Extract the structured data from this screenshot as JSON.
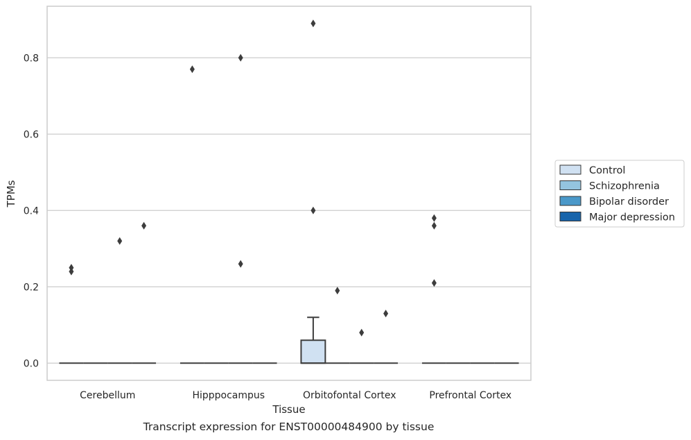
{
  "caption": "Transcript expression for ENST00000484900 by tissue",
  "chart_data": {
    "type": "box",
    "xlabel": "Tissue",
    "ylabel": "TPMs",
    "categories": [
      "Cerebellum",
      "Hipppocampus",
      "Orbitofontal Cortex",
      "Prefrontal Cortex"
    ],
    "ylim": [
      -0.045,
      0.935
    ],
    "yticks": [
      0.0,
      0.2,
      0.4,
      0.6,
      0.8
    ],
    "ytick_labels": [
      "0.0",
      "0.2",
      "0.4",
      "0.6",
      "0.8"
    ],
    "grid": true,
    "legend_position": "right",
    "series": [
      {
        "name": "Control",
        "color": "#d0e1f2",
        "boxes": [
          {
            "q1": 0,
            "median": 0,
            "q3": 0,
            "whisker_low": 0,
            "whisker_high": 0,
            "outliers": [
              0.24,
              0.25
            ]
          },
          {
            "q1": 0,
            "median": 0,
            "q3": 0,
            "whisker_low": 0,
            "whisker_high": 0,
            "outliers": [
              0.77
            ]
          },
          {
            "q1": 0,
            "median": 0,
            "q3": 0.06,
            "whisker_low": 0,
            "whisker_high": 0.12,
            "outliers": [
              0.4,
              0.89
            ]
          },
          {
            "q1": 0,
            "median": 0,
            "q3": 0,
            "whisker_low": 0,
            "whisker_high": 0,
            "outliers": [
              0.21,
              0.36,
              0.38
            ]
          }
        ]
      },
      {
        "name": "Schizophrenia",
        "color": "#94c4df",
        "boxes": [
          {
            "q1": 0,
            "median": 0,
            "q3": 0,
            "whisker_low": 0,
            "whisker_high": 0,
            "outliers": []
          },
          {
            "q1": 0,
            "median": 0,
            "q3": 0,
            "whisker_low": 0,
            "whisker_high": 0,
            "outliers": []
          },
          {
            "q1": 0,
            "median": 0,
            "q3": 0,
            "whisker_low": 0,
            "whisker_high": 0,
            "outliers": [
              0.19
            ]
          },
          {
            "q1": 0,
            "median": 0,
            "q3": 0,
            "whisker_low": 0,
            "whisker_high": 0,
            "outliers": []
          }
        ]
      },
      {
        "name": "Bipolar disorder",
        "color": "#4a98c9",
        "boxes": [
          {
            "q1": 0,
            "median": 0,
            "q3": 0,
            "whisker_low": 0,
            "whisker_high": 0,
            "outliers": [
              0.32
            ]
          },
          {
            "q1": 0,
            "median": 0,
            "q3": 0,
            "whisker_low": 0,
            "whisker_high": 0,
            "outliers": [
              0.26,
              0.8
            ]
          },
          {
            "q1": 0,
            "median": 0,
            "q3": 0,
            "whisker_low": 0,
            "whisker_high": 0,
            "outliers": [
              0.08
            ]
          },
          {
            "q1": 0,
            "median": 0,
            "q3": 0,
            "whisker_low": 0,
            "whisker_high": 0,
            "outliers": []
          }
        ]
      },
      {
        "name": "Major depression",
        "color": "#1764ab",
        "boxes": [
          {
            "q1": 0,
            "median": 0,
            "q3": 0,
            "whisker_low": 0,
            "whisker_high": 0,
            "outliers": [
              0.36
            ]
          },
          {
            "q1": 0,
            "median": 0,
            "q3": 0,
            "whisker_low": 0,
            "whisker_high": 0,
            "outliers": []
          },
          {
            "q1": 0,
            "median": 0,
            "q3": 0,
            "whisker_low": 0,
            "whisker_high": 0,
            "outliers": [
              0.13
            ]
          },
          {
            "q1": 0,
            "median": 0,
            "q3": 0,
            "whisker_low": 0,
            "whisker_high": 0,
            "outliers": []
          }
        ]
      }
    ]
  }
}
